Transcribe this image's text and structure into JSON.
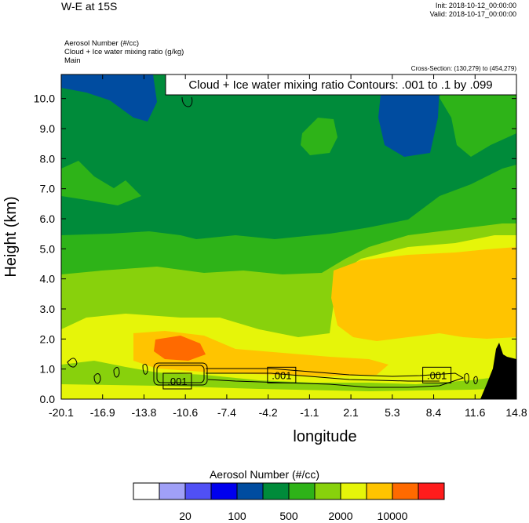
{
  "header": {
    "title": "W-E at 15S",
    "init": "Init: 2018-10-12_00:00:00",
    "valid": "Valid: 2018-10-17_00:00:00",
    "field1": "Aerosol Number   (#/cc)",
    "field2": "Cloud + Ice water mixing ratio   (g/kg)",
    "field3": "Main",
    "cross_section": "Cross-Section: (130,279) to (454,279)"
  },
  "chart_data": {
    "type": "heatmap",
    "title": "W-E at 15S",
    "xlabel": "longitude",
    "ylabel": "Height (km)",
    "x_ticks": [
      "-20.1",
      "-16.9",
      "-13.8",
      "-10.6",
      "-7.4",
      "-4.2",
      "-1.1",
      "2.1",
      "5.3",
      "8.4",
      "11.6",
      "14.8"
    ],
    "y_ticks": [
      "0.0",
      "1.0",
      "2.0",
      "3.0",
      "4.0",
      "5.0",
      "6.0",
      "7.0",
      "8.0",
      "9.0",
      "10.0"
    ],
    "xlim": [
      -20.1,
      14.8
    ],
    "ylim": [
      0,
      10.8
    ],
    "contour_annotation": "Cloud + Ice water mixing ratio Contours: .001 to .1 by .099",
    "contour_labels": [
      {
        "text": ".001",
        "lon": -11.2,
        "height": 0.6
      },
      {
        "text": ".001",
        "lon": -3.2,
        "height": 0.8
      },
      {
        "text": ".001",
        "lon": 8.7,
        "height": 0.8
      }
    ],
    "colorbar": {
      "title": "Aerosol Number  (#/cc)",
      "colors": [
        "#ffffff",
        "#a0a0f7",
        "#5050f5",
        "#0000ee",
        "#004ca0",
        "#008b3a",
        "#2eb318",
        "#88d10c",
        "#e6f509",
        "#ffc400",
        "#ff6a00",
        "#ff1c1c"
      ],
      "labels": [
        {
          "text": "20",
          "boundary": 2
        },
        {
          "text": "100",
          "boundary": 4
        },
        {
          "text": "500",
          "boundary": 6
        },
        {
          "text": "2000",
          "boundary": 8
        },
        {
          "text": "10000",
          "boundary": 10
        }
      ]
    }
  }
}
